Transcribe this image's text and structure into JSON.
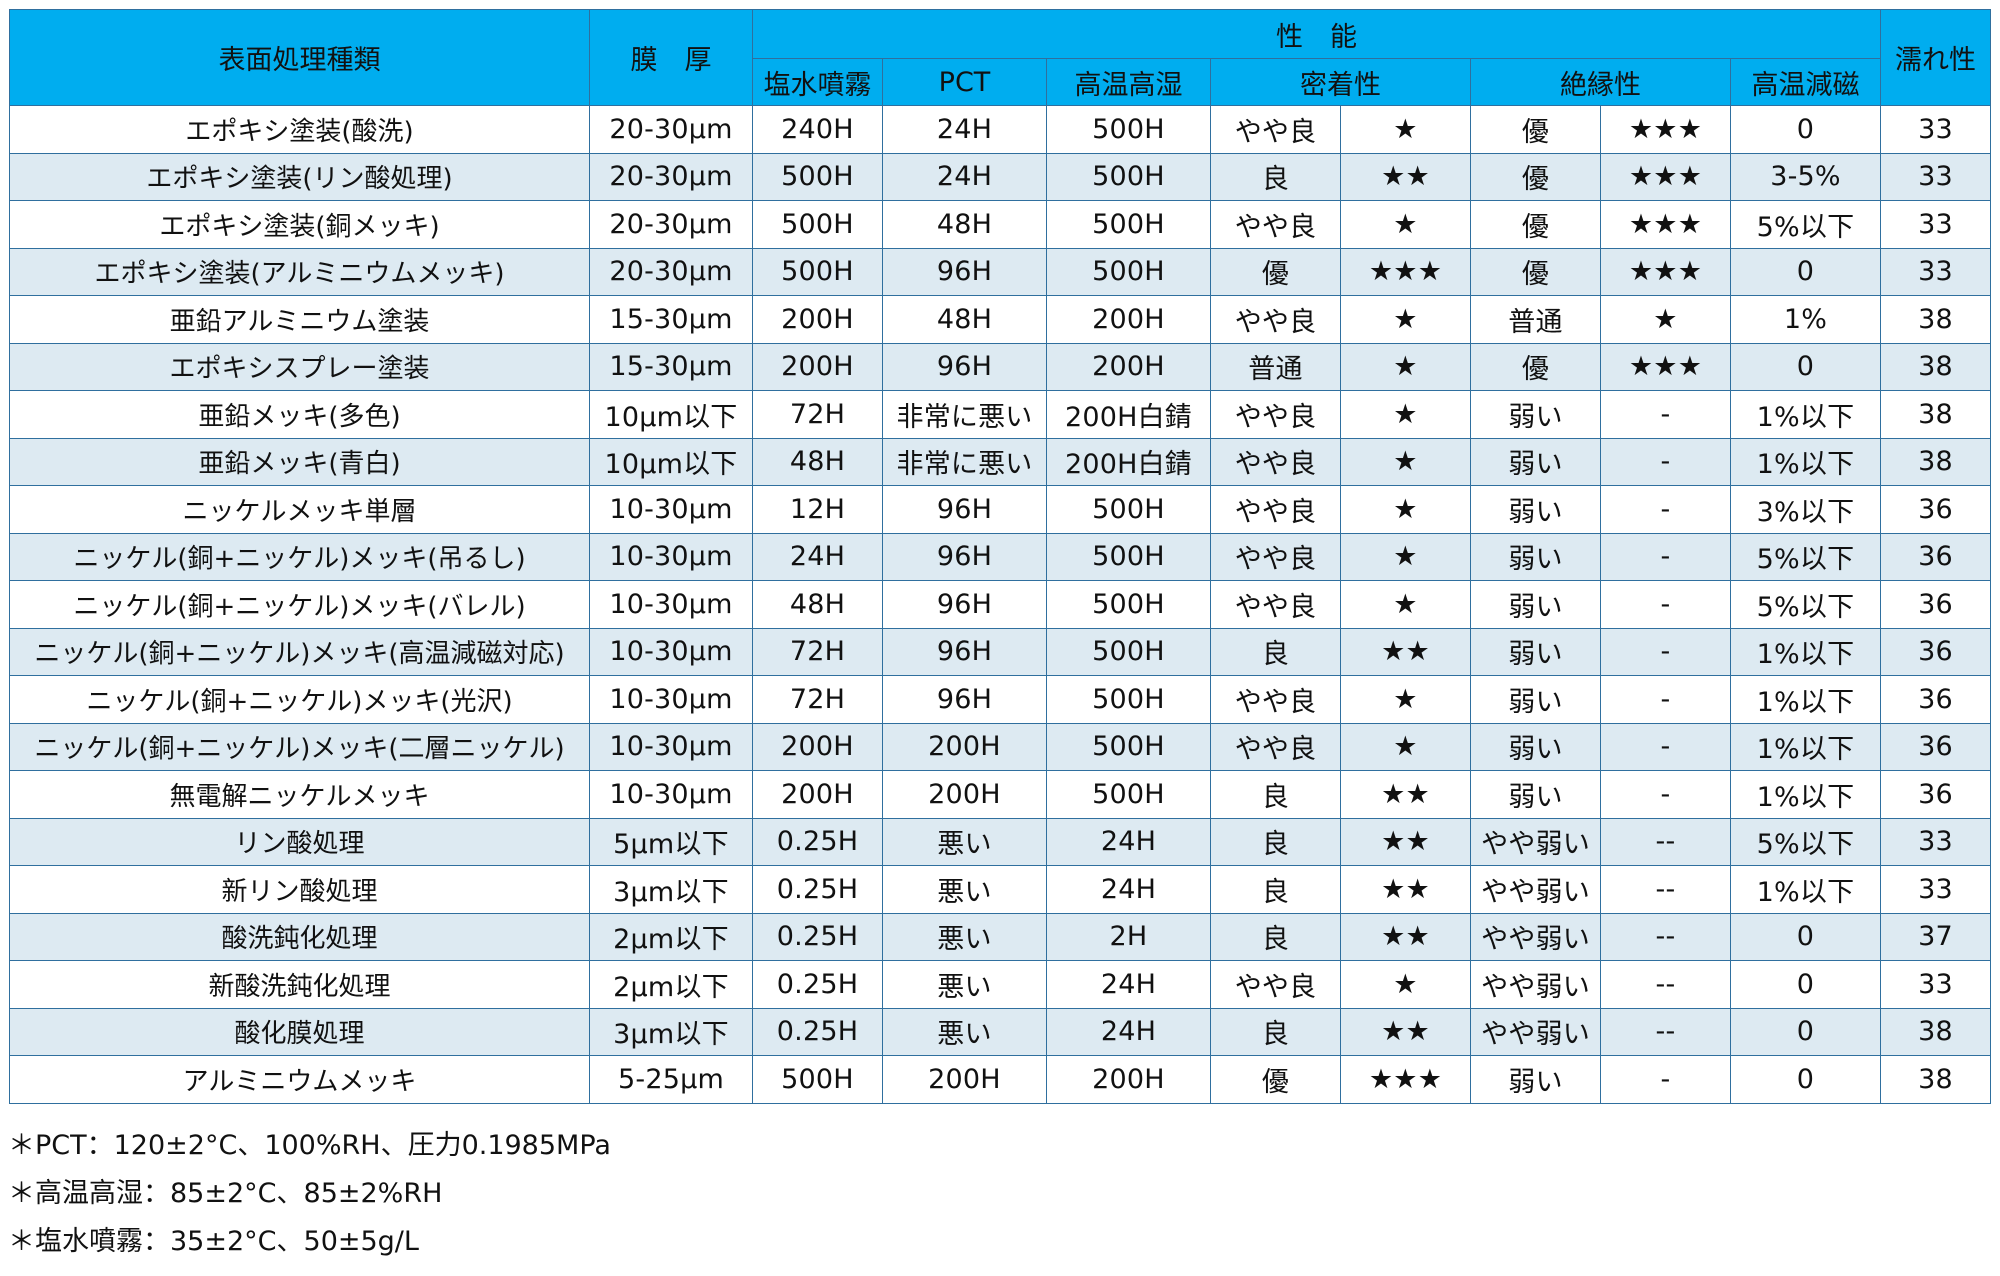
{
  "table": {
    "headers": {
      "category": "表面処理種類",
      "thickness": "膜　厚",
      "performance": "性　能",
      "salt_spray": "塩水噴霧",
      "pct": "PCT",
      "high_temp_humidity": "高温高湿",
      "adhesion": "密着性",
      "insulation": "絶縁性",
      "demagnetization": "高温減磁",
      "wettability": "濡れ性"
    },
    "rows": [
      {
        "name": "エポキシ塗装(酸洗)",
        "thickness": "20-30μm",
        "salt_spray": "240H",
        "pct": "24H",
        "high_temp_humidity": "500H",
        "adhesion": "やや良",
        "adhesion_stars": "★",
        "insulation": "優",
        "insulation_stars": "★★★",
        "demagnetization": "0",
        "wettability": "33"
      },
      {
        "name": "エポキシ塗装(リン酸処理)",
        "thickness": "20-30μm",
        "salt_spray": "500H",
        "pct": "24H",
        "high_temp_humidity": "500H",
        "adhesion": "良",
        "adhesion_stars": "★★",
        "insulation": "優",
        "insulation_stars": "★★★",
        "demagnetization": "3-5%",
        "wettability": "33"
      },
      {
        "name": "エポキシ塗装(銅メッキ)",
        "thickness": "20-30μm",
        "salt_spray": "500H",
        "pct": "48H",
        "high_temp_humidity": "500H",
        "adhesion": "やや良",
        "adhesion_stars": "★",
        "insulation": "優",
        "insulation_stars": "★★★",
        "demagnetization": "5%以下",
        "wettability": "33"
      },
      {
        "name": "エポキシ塗装(アルミニウムメッキ)",
        "thickness": "20-30μm",
        "salt_spray": "500H",
        "pct": "96H",
        "high_temp_humidity": "500H",
        "adhesion": "優",
        "adhesion_stars": "★★★",
        "insulation": "優",
        "insulation_stars": "★★★",
        "demagnetization": "0",
        "wettability": "33"
      },
      {
        "name": "亜鉛アルミニウム塗装",
        "thickness": "15-30μm",
        "salt_spray": "200H",
        "pct": "48H",
        "high_temp_humidity": "200H",
        "adhesion": "やや良",
        "adhesion_stars": "★",
        "insulation": "普通",
        "insulation_stars": "★",
        "demagnetization": "1%",
        "wettability": "38"
      },
      {
        "name": "エポキシスプレー塗装",
        "thickness": "15-30μm",
        "salt_spray": "200H",
        "pct": "96H",
        "high_temp_humidity": "200H",
        "adhesion": "普通",
        "adhesion_stars": "★",
        "insulation": "優",
        "insulation_stars": "★★★",
        "demagnetization": "0",
        "wettability": "38"
      },
      {
        "name": "亜鉛メッキ(多色)",
        "thickness": "10μm以下",
        "salt_spray": "72H",
        "pct": "非常に悪い",
        "high_temp_humidity": "200H白錆",
        "adhesion": "やや良",
        "adhesion_stars": "★",
        "insulation": "弱い",
        "insulation_stars": "-",
        "demagnetization": "1%以下",
        "wettability": "38"
      },
      {
        "name": "亜鉛メッキ(青白)",
        "thickness": "10μm以下",
        "salt_spray": "48H",
        "pct": "非常に悪い",
        "high_temp_humidity": "200H白錆",
        "adhesion": "やや良",
        "adhesion_stars": "★",
        "insulation": "弱い",
        "insulation_stars": "-",
        "demagnetization": "1%以下",
        "wettability": "38"
      },
      {
        "name": "ニッケルメッキ単層",
        "thickness": "10-30μm",
        "salt_spray": "12H",
        "pct": "96H",
        "high_temp_humidity": "500H",
        "adhesion": "やや良",
        "adhesion_stars": "★",
        "insulation": "弱い",
        "insulation_stars": "-",
        "demagnetization": "3%以下",
        "wettability": "36"
      },
      {
        "name": "ニッケル(銅+ニッケル)メッキ(吊るし)",
        "thickness": "10-30μm",
        "salt_spray": "24H",
        "pct": "96H",
        "high_temp_humidity": "500H",
        "adhesion": "やや良",
        "adhesion_stars": "★",
        "insulation": "弱い",
        "insulation_stars": "-",
        "demagnetization": "5%以下",
        "wettability": "36"
      },
      {
        "name": "ニッケル(銅+ニッケル)メッキ(バレル)",
        "thickness": "10-30μm",
        "salt_spray": "48H",
        "pct": "96H",
        "high_temp_humidity": "500H",
        "adhesion": "やや良",
        "adhesion_stars": "★",
        "insulation": "弱い",
        "insulation_stars": "-",
        "demagnetization": "5%以下",
        "wettability": "36"
      },
      {
        "name": "ニッケル(銅+ニッケル)メッキ(高温減磁対応)",
        "thickness": "10-30μm",
        "salt_spray": "72H",
        "pct": "96H",
        "high_temp_humidity": "500H",
        "adhesion": "良",
        "adhesion_stars": "★★",
        "insulation": "弱い",
        "insulation_stars": "-",
        "demagnetization": "1%以下",
        "wettability": "36"
      },
      {
        "name": "ニッケル(銅+ニッケル)メッキ(光沢)",
        "thickness": "10-30μm",
        "salt_spray": "72H",
        "pct": "96H",
        "high_temp_humidity": "500H",
        "adhesion": "やや良",
        "adhesion_stars": "★",
        "insulation": "弱い",
        "insulation_stars": "-",
        "demagnetization": "1%以下",
        "wettability": "36"
      },
      {
        "name": "ニッケル(銅+ニッケル)メッキ(二層ニッケル)",
        "thickness": "10-30μm",
        "salt_spray": "200H",
        "pct": "200H",
        "high_temp_humidity": "500H",
        "adhesion": "やや良",
        "adhesion_stars": "★",
        "insulation": "弱い",
        "insulation_stars": "-",
        "demagnetization": "1%以下",
        "wettability": "36"
      },
      {
        "name": "無電解ニッケルメッキ",
        "thickness": "10-30μm",
        "salt_spray": "200H",
        "pct": "200H",
        "high_temp_humidity": "500H",
        "adhesion": "良",
        "adhesion_stars": "★★",
        "insulation": "弱い",
        "insulation_stars": "-",
        "demagnetization": "1%以下",
        "wettability": "36"
      },
      {
        "name": "リン酸処理",
        "thickness": "5μm以下",
        "salt_spray": "0.25H",
        "pct": "悪い",
        "high_temp_humidity": "24H",
        "adhesion": "良",
        "adhesion_stars": "★★",
        "insulation": "やや弱い",
        "insulation_stars": "--",
        "demagnetization": "5%以下",
        "wettability": "33"
      },
      {
        "name": "新リン酸処理",
        "thickness": "3μm以下",
        "salt_spray": "0.25H",
        "pct": "悪い",
        "high_temp_humidity": "24H",
        "adhesion": "良",
        "adhesion_stars": "★★",
        "insulation": "やや弱い",
        "insulation_stars": "--",
        "demagnetization": "1%以下",
        "wettability": "33"
      },
      {
        "name": "酸洗鈍化処理",
        "thickness": "2μm以下",
        "salt_spray": "0.25H",
        "pct": "悪い",
        "high_temp_humidity": "2H",
        "adhesion": "良",
        "adhesion_stars": "★★",
        "insulation": "やや弱い",
        "insulation_stars": "--",
        "demagnetization": "0",
        "wettability": "37"
      },
      {
        "name": "新酸洗鈍化処理",
        "thickness": "2μm以下",
        "salt_spray": "0.25H",
        "pct": "悪い",
        "high_temp_humidity": "24H",
        "adhesion": "やや良",
        "adhesion_stars": "★",
        "insulation": "やや弱い",
        "insulation_stars": "--",
        "demagnetization": "0",
        "wettability": "33"
      },
      {
        "name": "酸化膜処理",
        "thickness": "3μm以下",
        "salt_spray": "0.25H",
        "pct": "悪い",
        "high_temp_humidity": "24H",
        "adhesion": "良",
        "adhesion_stars": "★★",
        "insulation": "やや弱い",
        "insulation_stars": "--",
        "demagnetization": "0",
        "wettability": "38"
      },
      {
        "name": "アルミニウムメッキ",
        "thickness": "5-25μm",
        "salt_spray": "500H",
        "pct": "200H",
        "high_temp_humidity": "200H",
        "adhesion": "優",
        "adhesion_stars": "★★★",
        "insulation": "弱い",
        "insulation_stars": "-",
        "demagnetization": "0",
        "wettability": "38"
      }
    ]
  },
  "notes": [
    "＊PCT：120±2°C、100%RH、圧力0.1985MPa",
    "＊高温高湿：85±2°C、85±2%RH",
    "＊塩水噴霧：35±2°C、50±5g/L"
  ],
  "colors": {
    "header_background": "#00adef",
    "stripe_background": "#ddeaf2",
    "border": "#2f6f9e"
  }
}
